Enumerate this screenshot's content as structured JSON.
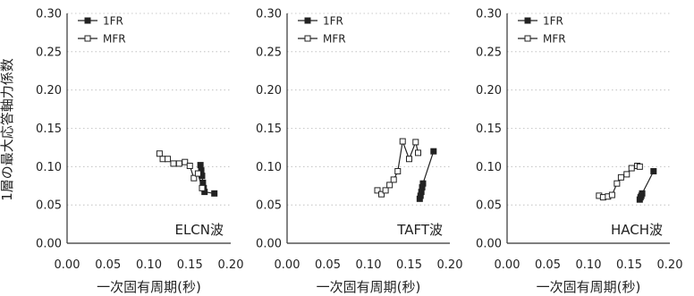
{
  "y_axis_title": "1層の最大応答軸力係数",
  "chart_data": [
    {
      "type": "line",
      "annotation": "ELCN波",
      "xlabel": "一次固有周期(秒)",
      "ylabel": "1層の最大応答軸力係数",
      "xlim": [
        0.0,
        0.2
      ],
      "ylim": [
        0.0,
        0.3
      ],
      "x_ticks": [
        "0.00",
        "0.05",
        "0.10",
        "0.15",
        "0.20"
      ],
      "y_ticks": [
        "0.00",
        "0.05",
        "0.10",
        "0.15",
        "0.20",
        "0.25",
        "0.30"
      ],
      "grid": "horizontal dotted",
      "legend": "top-left",
      "series": [
        {
          "name": "1FR",
          "marker": "filled-square",
          "color": "#222222",
          "points": [
            [
              0.163,
              0.102
            ],
            [
              0.164,
              0.095
            ],
            [
              0.165,
              0.088
            ],
            [
              0.166,
              0.079
            ],
            [
              0.167,
              0.072
            ],
            [
              0.168,
              0.067
            ],
            [
              0.18,
              0.065
            ]
          ]
        },
        {
          "name": "MFR",
          "marker": "open-square",
          "color": "#222222",
          "points": [
            [
              0.113,
              0.117
            ],
            [
              0.117,
              0.11
            ],
            [
              0.123,
              0.11
            ],
            [
              0.13,
              0.104
            ],
            [
              0.137,
              0.104
            ],
            [
              0.144,
              0.106
            ],
            [
              0.15,
              0.101
            ],
            [
              0.155,
              0.085
            ],
            [
              0.16,
              0.091
            ],
            [
              0.165,
              0.072
            ]
          ]
        }
      ]
    },
    {
      "type": "line",
      "annotation": "TAFT波",
      "xlabel": "一次固有周期(秒)",
      "xlim": [
        0.0,
        0.2
      ],
      "ylim": [
        0.0,
        0.3
      ],
      "x_ticks": [
        "0.00",
        "0.05",
        "0.10",
        "0.15",
        "0.20"
      ],
      "y_ticks": [
        "0.00",
        "0.05",
        "0.10",
        "0.15",
        "0.20",
        "0.25",
        "0.30"
      ],
      "grid": "horizontal dotted",
      "legend": "top-left",
      "series": [
        {
          "name": "1FR",
          "marker": "filled-square",
          "color": "#222222",
          "points": [
            [
              0.163,
              0.058
            ],
            [
              0.164,
              0.062
            ],
            [
              0.165,
              0.067
            ],
            [
              0.166,
              0.073
            ],
            [
              0.167,
              0.078
            ],
            [
              0.18,
              0.12
            ]
          ]
        },
        {
          "name": "MFR",
          "marker": "open-square",
          "color": "#222222",
          "points": [
            [
              0.111,
              0.069
            ],
            [
              0.116,
              0.064
            ],
            [
              0.121,
              0.069
            ],
            [
              0.126,
              0.076
            ],
            [
              0.131,
              0.083
            ],
            [
              0.136,
              0.094
            ],
            [
              0.142,
              0.133
            ],
            [
              0.15,
              0.11
            ],
            [
              0.158,
              0.132
            ],
            [
              0.161,
              0.118
            ]
          ]
        }
      ]
    },
    {
      "type": "line",
      "annotation": "HACH波",
      "xlabel": "一次固有周期(秒)",
      "xlim": [
        0.0,
        0.2
      ],
      "ylim": [
        0.0,
        0.3
      ],
      "x_ticks": [
        "0.00",
        "0.05",
        "0.10",
        "0.15",
        "0.20"
      ],
      "y_ticks": [
        "0.00",
        "0.05",
        "0.10",
        "0.15",
        "0.20",
        "0.25",
        "0.30"
      ],
      "grid": "horizontal dotted",
      "legend": "top-left",
      "series": [
        {
          "name": "1FR",
          "marker": "filled-square",
          "color": "#222222",
          "points": [
            [
              0.163,
              0.057
            ],
            [
              0.164,
              0.06
            ],
            [
              0.165,
              0.062
            ],
            [
              0.166,
              0.065
            ],
            [
              0.18,
              0.094
            ]
          ]
        },
        {
          "name": "MFR",
          "marker": "open-square",
          "color": "#222222",
          "points": [
            [
              0.113,
              0.062
            ],
            [
              0.118,
              0.06
            ],
            [
              0.124,
              0.061
            ],
            [
              0.129,
              0.063
            ],
            [
              0.135,
              0.078
            ],
            [
              0.14,
              0.086
            ],
            [
              0.147,
              0.09
            ],
            [
              0.153,
              0.098
            ],
            [
              0.16,
              0.101
            ],
            [
              0.163,
              0.1
            ]
          ]
        }
      ]
    }
  ]
}
